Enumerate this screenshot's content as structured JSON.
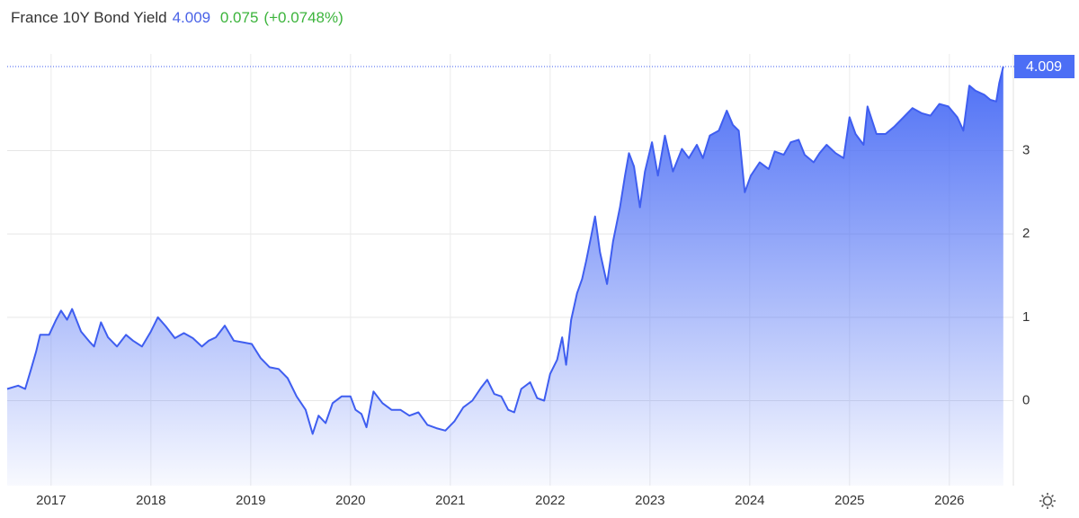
{
  "chart_data": {
    "type": "area",
    "title": "France 10Y Bond Yield",
    "current_value": 4.009,
    "change": 0.075,
    "change_percent_label": "(+0.0748%)",
    "x": [
      2016.56,
      2016.67,
      2016.74,
      2016.8,
      2016.85,
      2016.89,
      2016.98,
      2017.05,
      2017.1,
      2017.16,
      2017.21,
      2017.3,
      2017.39,
      2017.43,
      2017.5,
      2017.57,
      2017.66,
      2017.75,
      2017.82,
      2017.91,
      2018.0,
      2018.07,
      2018.15,
      2018.24,
      2018.33,
      2018.42,
      2018.51,
      2018.58,
      2018.65,
      2018.74,
      2018.83,
      2018.92,
      2019.01,
      2019.1,
      2019.19,
      2019.28,
      2019.37,
      2019.46,
      2019.55,
      2019.62,
      2019.68,
      2019.75,
      2019.82,
      2019.91,
      2020.0,
      2020.05,
      2020.11,
      2020.16,
      2020.23,
      2020.32,
      2020.41,
      2020.5,
      2020.59,
      2020.68,
      2020.77,
      2020.86,
      2020.95,
      2021.04,
      2021.13,
      2021.22,
      2021.31,
      2021.37,
      2021.44,
      2021.51,
      2021.58,
      2021.64,
      2021.71,
      2021.8,
      2021.87,
      2021.94,
      2022.0,
      2022.07,
      2022.12,
      2022.16,
      2022.21,
      2022.27,
      2022.32,
      2022.36,
      2022.41,
      2022.45,
      2022.5,
      2022.57,
      2022.63,
      2022.7,
      2022.75,
      2022.79,
      2022.84,
      2022.9,
      2022.95,
      2023.02,
      2023.08,
      2023.15,
      2023.23,
      2023.32,
      2023.39,
      2023.47,
      2023.53,
      2023.6,
      2023.69,
      2023.77,
      2023.83,
      2023.89,
      2023.95,
      2024.01,
      2024.1,
      2024.19,
      2024.25,
      2024.34,
      2024.41,
      2024.49,
      2024.55,
      2024.64,
      2024.7,
      2024.77,
      2024.86,
      2024.94,
      2025.0,
      2025.06,
      2025.14,
      2025.18,
      2025.27,
      2025.36,
      2025.45,
      2025.54,
      2025.63,
      2025.72,
      2025.81,
      2025.9,
      2025.99,
      2026.08,
      2026.14,
      2026.2,
      2026.26,
      2026.35,
      2026.41,
      2026.47,
      2026.5,
      2026.54
    ],
    "series": [
      {
        "color": "#3f5ef0",
        "values": [
          0.14,
          0.18,
          0.14,
          0.38,
          0.59,
          0.79,
          0.79,
          0.97,
          1.08,
          0.97,
          1.1,
          0.83,
          0.7,
          0.65,
          0.94,
          0.76,
          0.65,
          0.79,
          0.72,
          0.65,
          0.83,
          1.0,
          0.89,
          0.75,
          0.81,
          0.75,
          0.65,
          0.72,
          0.76,
          0.9,
          0.72,
          0.7,
          0.68,
          0.51,
          0.4,
          0.38,
          0.27,
          0.05,
          -0.11,
          -0.4,
          -0.18,
          -0.27,
          -0.03,
          0.05,
          0.05,
          -0.11,
          -0.16,
          -0.32,
          0.11,
          -0.03,
          -0.11,
          -0.11,
          -0.18,
          -0.14,
          -0.29,
          -0.33,
          -0.36,
          -0.25,
          -0.08,
          0.0,
          0.16,
          0.25,
          0.08,
          0.05,
          -0.11,
          -0.14,
          0.14,
          0.22,
          0.03,
          0.0,
          0.32,
          0.49,
          0.76,
          0.43,
          0.97,
          1.29,
          1.46,
          1.67,
          1.97,
          2.21,
          1.78,
          1.4,
          1.91,
          2.32,
          2.7,
          2.97,
          2.81,
          2.32,
          2.75,
          3.1,
          2.7,
          3.18,
          2.75,
          3.02,
          2.91,
          3.07,
          2.91,
          3.18,
          3.24,
          3.48,
          3.31,
          3.24,
          2.5,
          2.7,
          2.86,
          2.78,
          2.99,
          2.95,
          3.1,
          3.13,
          2.95,
          2.86,
          2.97,
          3.07,
          2.97,
          2.91,
          3.4,
          3.2,
          3.07,
          3.53,
          3.2,
          3.2,
          3.29,
          3.4,
          3.51,
          3.45,
          3.42,
          3.56,
          3.53,
          3.4,
          3.24,
          3.78,
          3.72,
          3.67,
          3.61,
          3.59,
          3.81,
          4.009
        ]
      }
    ],
    "xlim": [
      2016.56,
      2026.56
    ],
    "xticks": [
      2017,
      2018,
      2019,
      2020,
      2021,
      2022,
      2023,
      2024,
      2025,
      2026
    ],
    "ylim": [
      -1.02,
      4.16
    ],
    "yticks": [
      0,
      1,
      2,
      3
    ],
    "grid": true
  }
}
